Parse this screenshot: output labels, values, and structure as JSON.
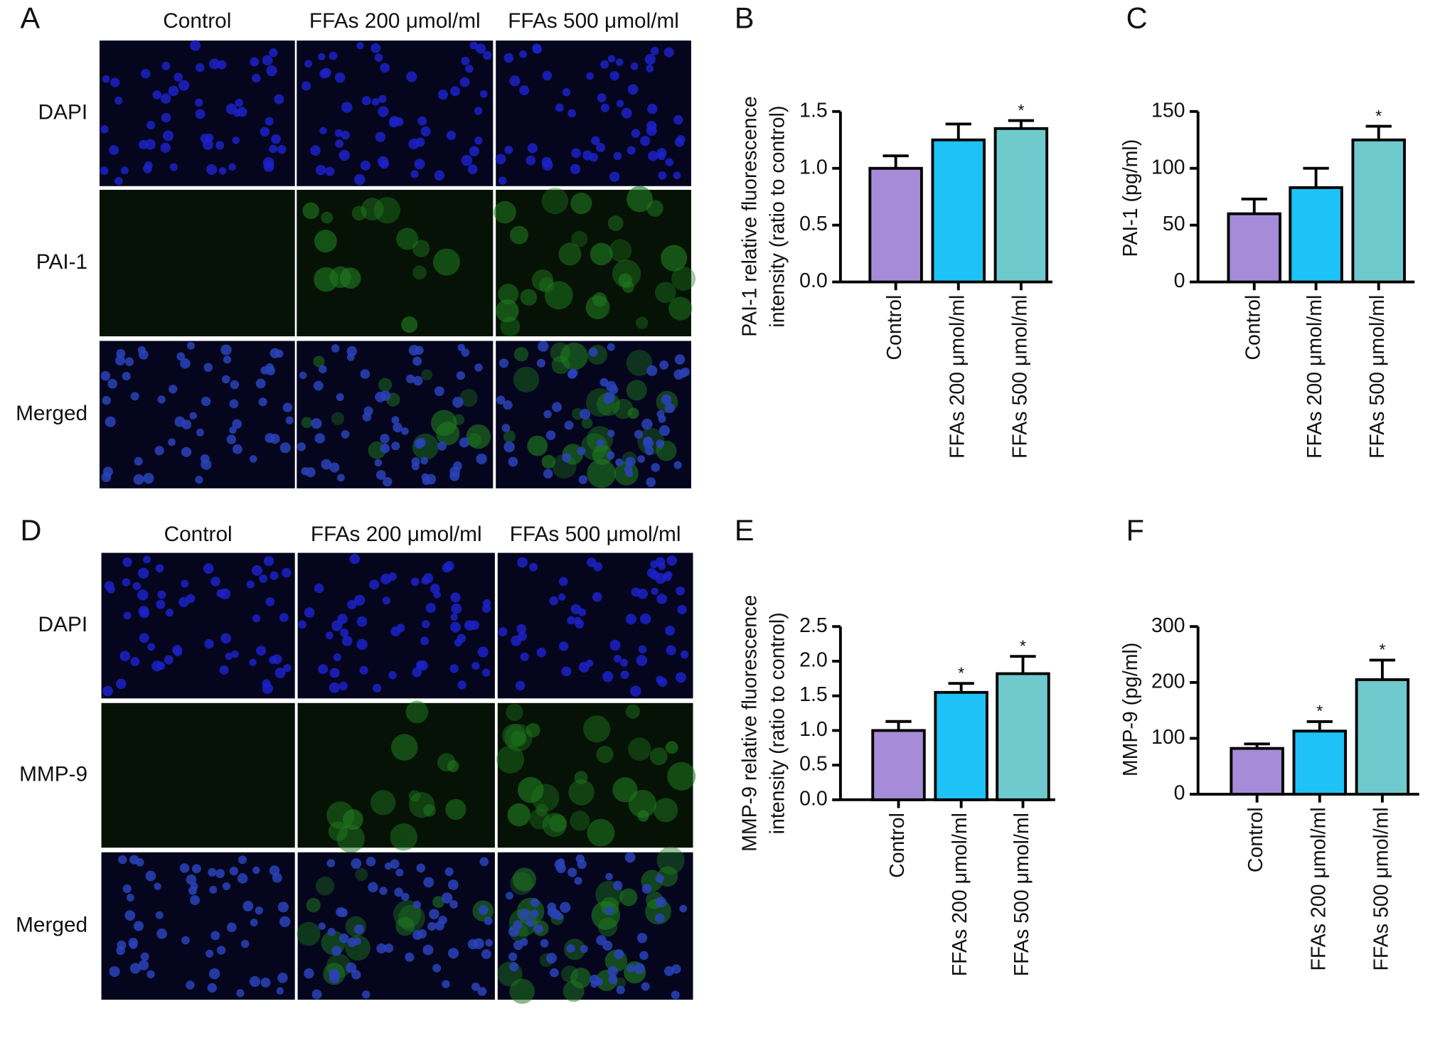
{
  "figure": [
    {
      "panel": "A",
      "columns": [
        "Control",
        "FFAs 200 μmol/ml",
        "FFAs 500 μmol/ml"
      ],
      "rows": [
        "DAPI",
        "PAI-1",
        "Merged"
      ]
    },
    {
      "panel": "D",
      "columns": [
        "Control",
        "FFAs 200 μmol/ml",
        "FFAs 500 μmol/ml"
      ],
      "rows": [
        "DAPI",
        "MMP-9",
        "Merged"
      ]
    }
  ],
  "chart_data": [
    {
      "type": "bar",
      "panel": "B",
      "ylabel": [
        "PAI-1 relative fluorescence",
        "intensity (ratio to control)"
      ],
      "categories": [
        "Control",
        "FFAs 200 μmol/ml",
        "FFAs 500 μmol/ml"
      ],
      "values": [
        1.0,
        1.25,
        1.35
      ],
      "errors": [
        0.11,
        0.14,
        0.07
      ],
      "significance": [
        null,
        null,
        "*"
      ],
      "colors": [
        "#a68bd8",
        "#1ec2f6",
        "#6ecacd"
      ],
      "ylim": [
        0,
        1.5
      ],
      "yticks": [
        {
          "value": 0,
          "label": "0.0"
        },
        0.5,
        {
          "value": 1,
          "label": "1.0"
        },
        1.5
      ]
    },
    {
      "type": "bar",
      "panel": "C",
      "ylabel": [
        "PAI-1 (pg/ml)"
      ],
      "categories": [
        "Control",
        "FFAs 200 μmol/ml",
        "FFAs 500 μmol/ml"
      ],
      "values": [
        60,
        83,
        125
      ],
      "errors": [
        13,
        17,
        12
      ],
      "significance": [
        null,
        null,
        "*"
      ],
      "colors": [
        "#a68bd8",
        "#1ec2f6",
        "#6ecacd"
      ],
      "ylim": [
        0,
        150
      ],
      "yticks": [
        0,
        50,
        100,
        150
      ]
    },
    {
      "type": "bar",
      "panel": "E",
      "ylabel": [
        "MMP-9 relative fluorescence",
        "intensity (ratio to control)"
      ],
      "categories": [
        "Control",
        "FFAs 200 μmol/ml",
        "FFAs 500 μmol/ml"
      ],
      "values": [
        1.0,
        1.55,
        1.82
      ],
      "errors": [
        0.13,
        0.13,
        0.25
      ],
      "significance": [
        null,
        "*",
        "*"
      ],
      "colors": [
        "#a68bd8",
        "#1ec2f6",
        "#6ecacd"
      ],
      "ylim": [
        0,
        2.5
      ],
      "yticks": [
        {
          "value": 0,
          "label": "0.0"
        },
        0.5,
        {
          "value": 1,
          "label": "1.0"
        },
        1.5,
        {
          "value": 2,
          "label": "2.0"
        },
        2.5
      ]
    },
    {
      "type": "bar",
      "panel": "F",
      "ylabel": [
        "MMP-9 (pg/ml)"
      ],
      "categories": [
        "Control",
        "FFAs 200 μmol/ml",
        "FFAs 500 μmol/ml"
      ],
      "values": [
        82,
        113,
        205
      ],
      "errors": [
        8,
        17,
        35
      ],
      "significance": [
        null,
        "*",
        "*"
      ],
      "colors": [
        "#a68bd8",
        "#1ec2f6",
        "#6ecacd"
      ],
      "ylim": [
        0,
        300
      ],
      "yticks": [
        0,
        100,
        200,
        300
      ]
    }
  ]
}
